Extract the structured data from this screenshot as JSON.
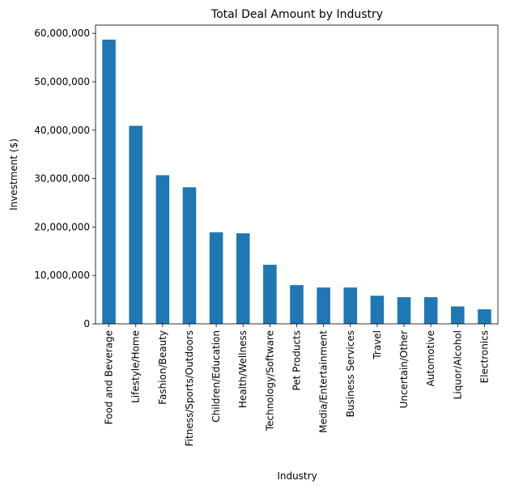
{
  "chart_data": {
    "type": "bar",
    "title": "Total Deal Amount by Industry",
    "xlabel": "Industry",
    "ylabel": "Investment ($)",
    "categories": [
      "Food and Beverage",
      "Lifestyle/Home",
      "Fashion/Beauty",
      "Fitness/Sports/Outdoors",
      "Children/Education",
      "Health/Wellness",
      "Technology/Software",
      "Pet Products",
      "Media/Entertainment",
      "Business Services",
      "Travel",
      "Uncertain/Other",
      "Automotive",
      "Liquor/Alcohol",
      "Electronics"
    ],
    "values": [
      58700000,
      40900000,
      30700000,
      28200000,
      18900000,
      18700000,
      12200000,
      8000000,
      7500000,
      7500000,
      5800000,
      5500000,
      5500000,
      3600000,
      3000000
    ],
    "ylim": [
      0,
      61700000
    ],
    "yticks": [
      0,
      10000000,
      20000000,
      30000000,
      40000000,
      50000000,
      60000000
    ],
    "ytick_labels": [
      "0",
      "10,000,000",
      "20,000,000",
      "30,000,000",
      "40,000,000",
      "50,000,000",
      "60,000,000"
    ],
    "bar_color": "#1f77b4",
    "grid": false,
    "legend": "none"
  }
}
